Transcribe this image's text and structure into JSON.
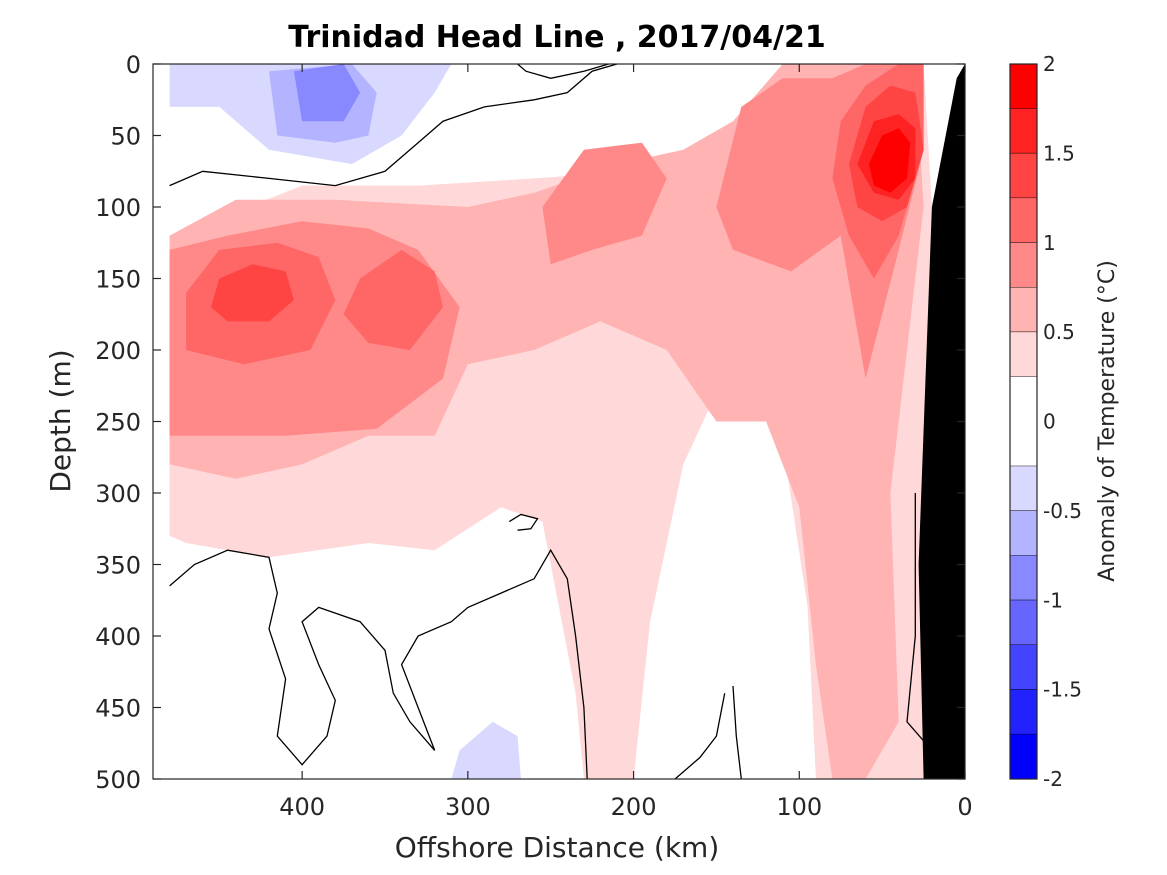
{
  "chart_data": {
    "type": "contour",
    "title": "Trinidad Head Line , 2017/04/21",
    "xlabel": "Offshore Distance (km)",
    "ylabel": "Depth (m)",
    "colorbar_label": "Anomaly of Temperature (°C)",
    "xlim": [
      490,
      0
    ],
    "ylim": [
      0,
      500
    ],
    "x_ticks": [
      400,
      300,
      200,
      100,
      0
    ],
    "y_ticks": [
      0,
      50,
      100,
      150,
      200,
      250,
      300,
      350,
      400,
      450,
      500
    ],
    "colorbar_range": [
      -2,
      2
    ],
    "colorbar_ticks": [
      2,
      1.5,
      1,
      0.5,
      0,
      -0.5,
      -1,
      -1.5,
      -2
    ],
    "levels": [
      {
        "range": [
          1.75,
          2.0
        ],
        "color": "#ff0000"
      },
      {
        "range": [
          1.5,
          1.75
        ],
        "color": "#ff2222"
      },
      {
        "range": [
          1.25,
          1.5
        ],
        "color": "#ff4444"
      },
      {
        "range": [
          1.0,
          1.25
        ],
        "color": "#ff6666"
      },
      {
        "range": [
          0.75,
          1.0
        ],
        "color": "#ff8888"
      },
      {
        "range": [
          0.5,
          0.75
        ],
        "color": "#ffb3b3"
      },
      {
        "range": [
          0.25,
          0.5
        ],
        "color": "#ffd9d9"
      },
      {
        "range": [
          -0.25,
          0.25
        ],
        "color": "#ffffff"
      },
      {
        "range": [
          -0.5,
          -0.25
        ],
        "color": "#d9d9ff"
      },
      {
        "range": [
          -0.75,
          -0.5
        ],
        "color": "#b3b3ff"
      },
      {
        "range": [
          -1.0,
          -0.75
        ],
        "color": "#8888ff"
      },
      {
        "range": [
          -1.25,
          -1.0
        ],
        "color": "#6666ff"
      },
      {
        "range": [
          -1.5,
          -1.25
        ],
        "color": "#4444ff"
      },
      {
        "range": [
          -1.75,
          -1.5
        ],
        "color": "#2222ff"
      },
      {
        "range": [
          -2.0,
          -1.75
        ],
        "color": "#0000ff"
      }
    ],
    "regions": [
      {
        "anomaly": 0.375,
        "points": [
          [
            480,
            330
          ],
          [
            480,
            200
          ],
          [
            455,
            110
          ],
          [
            400,
            85
          ],
          [
            330,
            85
          ],
          [
            260,
            80
          ],
          [
            200,
            75
          ],
          [
            140,
            65
          ],
          [
            90,
            40
          ],
          [
            60,
            0
          ],
          [
            25,
            0
          ],
          [
            20,
            100
          ],
          [
            18,
            500
          ],
          [
            90,
            500
          ],
          [
            95,
            380
          ],
          [
            108,
            280
          ],
          [
            120,
            180
          ],
          [
            150,
            230
          ],
          [
            170,
            280
          ],
          [
            190,
            390
          ],
          [
            200,
            500
          ],
          [
            230,
            500
          ],
          [
            235,
            440
          ],
          [
            255,
            320
          ],
          [
            280,
            310
          ],
          [
            320,
            340
          ],
          [
            360,
            335
          ],
          [
            420,
            345
          ],
          [
            470,
            335
          ]
        ]
      },
      {
        "anomaly": 0.625,
        "points": [
          [
            480,
            280
          ],
          [
            480,
            120
          ],
          [
            440,
            95
          ],
          [
            380,
            95
          ],
          [
            300,
            100
          ],
          [
            260,
            90
          ],
          [
            210,
            70
          ],
          [
            170,
            60
          ],
          [
            140,
            40
          ],
          [
            110,
            0
          ],
          [
            70,
            0
          ],
          [
            30,
            0
          ],
          [
            25,
            100
          ],
          [
            45,
            300
          ],
          [
            40,
            460
          ],
          [
            60,
            500
          ],
          [
            80,
            500
          ],
          [
            90,
            420
          ],
          [
            100,
            310
          ],
          [
            120,
            250
          ],
          [
            150,
            250
          ],
          [
            180,
            200
          ],
          [
            220,
            180
          ],
          [
            260,
            200
          ],
          [
            300,
            210
          ],
          [
            320,
            260
          ],
          [
            360,
            260
          ],
          [
            400,
            280
          ],
          [
            440,
            290
          ]
        ]
      },
      {
        "anomaly": 0.875,
        "points": [
          [
            480,
            260
          ],
          [
            480,
            130
          ],
          [
            445,
            120
          ],
          [
            400,
            110
          ],
          [
            360,
            115
          ],
          [
            330,
            130
          ],
          [
            305,
            170
          ],
          [
            315,
            220
          ],
          [
            355,
            255
          ],
          [
            410,
            260
          ],
          [
            460,
            260
          ]
        ]
      },
      {
        "anomaly": 0.875,
        "points": [
          [
            250,
            140
          ],
          [
            255,
            100
          ],
          [
            230,
            60
          ],
          [
            195,
            55
          ],
          [
            180,
            80
          ],
          [
            195,
            120
          ],
          [
            225,
            130
          ]
        ]
      },
      {
        "anomaly": 0.875,
        "points": [
          [
            150,
            100
          ],
          [
            135,
            30
          ],
          [
            110,
            10
          ],
          [
            80,
            10
          ],
          [
            60,
            0
          ],
          [
            25,
            0
          ],
          [
            25,
            60
          ],
          [
            40,
            130
          ],
          [
            60,
            220
          ],
          [
            75,
            120
          ],
          [
            105,
            145
          ],
          [
            140,
            130
          ]
        ]
      },
      {
        "anomaly": 1.125,
        "points": [
          [
            470,
            200
          ],
          [
            470,
            160
          ],
          [
            450,
            130
          ],
          [
            415,
            125
          ],
          [
            390,
            135
          ],
          [
            380,
            165
          ],
          [
            395,
            200
          ],
          [
            435,
            210
          ]
        ]
      },
      {
        "anomaly": 1.125,
        "points": [
          [
            375,
            175
          ],
          [
            365,
            150
          ],
          [
            340,
            130
          ],
          [
            320,
            145
          ],
          [
            315,
            170
          ],
          [
            335,
            200
          ],
          [
            360,
            195
          ]
        ]
      },
      {
        "anomaly": 1.125,
        "points": [
          [
            80,
            80
          ],
          [
            75,
            40
          ],
          [
            60,
            15
          ],
          [
            40,
            0
          ],
          [
            25,
            0
          ],
          [
            25,
            60
          ],
          [
            40,
            120
          ],
          [
            55,
            150
          ],
          [
            70,
            120
          ]
        ]
      },
      {
        "anomaly": 1.375,
        "points": [
          [
            455,
            170
          ],
          [
            450,
            150
          ],
          [
            430,
            140
          ],
          [
            410,
            145
          ],
          [
            405,
            165
          ],
          [
            420,
            180
          ],
          [
            445,
            180
          ]
        ]
      },
      {
        "anomaly": 1.375,
        "points": [
          [
            70,
            70
          ],
          [
            60,
            30
          ],
          [
            45,
            15
          ],
          [
            30,
            20
          ],
          [
            25,
            60
          ],
          [
            35,
            100
          ],
          [
            50,
            110
          ],
          [
            65,
            100
          ]
        ]
      },
      {
        "anomaly": 1.625,
        "points": [
          [
            65,
            70
          ],
          [
            55,
            40
          ],
          [
            40,
            35
          ],
          [
            30,
            45
          ],
          [
            30,
            80
          ],
          [
            40,
            95
          ],
          [
            55,
            90
          ]
        ]
      },
      {
        "anomaly": 1.875,
        "points": [
          [
            58,
            70
          ],
          [
            50,
            50
          ],
          [
            40,
            45
          ],
          [
            33,
            55
          ],
          [
            35,
            80
          ],
          [
            45,
            90
          ],
          [
            55,
            85
          ]
        ]
      },
      {
        "anomaly": -0.375,
        "points": [
          [
            480,
            0
          ],
          [
            480,
            30
          ],
          [
            450,
            30
          ],
          [
            420,
            60
          ],
          [
            370,
            70
          ],
          [
            340,
            50
          ],
          [
            320,
            20
          ],
          [
            310,
            0
          ]
        ]
      },
      {
        "anomaly": -0.625,
        "points": [
          [
            420,
            5
          ],
          [
            415,
            50
          ],
          [
            380,
            55
          ],
          [
            360,
            50
          ],
          [
            355,
            20
          ],
          [
            370,
            0
          ]
        ]
      },
      {
        "anomaly": -0.875,
        "points": [
          [
            405,
            5
          ],
          [
            400,
            40
          ],
          [
            375,
            40
          ],
          [
            365,
            20
          ],
          [
            375,
            0
          ]
        ]
      },
      {
        "anomaly": -0.375,
        "points": [
          [
            310,
            500
          ],
          [
            305,
            480
          ],
          [
            285,
            460
          ],
          [
            270,
            470
          ],
          [
            268,
            500
          ]
        ]
      }
    ],
    "zero_contours": [
      [
        [
          480,
          85
        ],
        [
          460,
          75
        ],
        [
          420,
          80
        ],
        [
          380,
          85
        ],
        [
          350,
          75
        ],
        [
          330,
          55
        ],
        [
          315,
          40
        ],
        [
          290,
          30
        ],
        [
          260,
          25
        ],
        [
          240,
          20
        ],
        [
          225,
          5
        ],
        [
          210,
          0
        ]
      ],
      [
        [
          270,
          0
        ],
        [
          265,
          5
        ],
        [
          250,
          10
        ],
        [
          230,
          5
        ],
        [
          215,
          0
        ]
      ],
      [
        [
          480,
          365
        ],
        [
          465,
          350
        ],
        [
          445,
          340
        ],
        [
          420,
          345
        ],
        [
          415,
          370
        ],
        [
          420,
          395
        ],
        [
          410,
          430
        ],
        [
          415,
          470
        ],
        [
          400,
          490
        ],
        [
          385,
          470
        ],
        [
          380,
          445
        ],
        [
          390,
          420
        ],
        [
          400,
          390
        ],
        [
          390,
          380
        ],
        [
          365,
          390
        ],
        [
          350,
          410
        ],
        [
          345,
          440
        ],
        [
          335,
          460
        ],
        [
          320,
          480
        ],
        [
          330,
          450
        ],
        [
          340,
          420
        ],
        [
          330,
          400
        ],
        [
          310,
          390
        ],
        [
          300,
          380
        ],
        [
          280,
          370
        ],
        [
          260,
          360
        ],
        [
          250,
          340
        ],
        [
          240,
          360
        ],
        [
          235,
          400
        ],
        [
          230,
          450
        ],
        [
          228,
          500
        ]
      ],
      [
        [
          275,
          320
        ],
        [
          268,
          315
        ],
        [
          258,
          318
        ],
        [
          262,
          325
        ],
        [
          270,
          326
        ]
      ],
      [
        [
          140,
          435
        ],
        [
          138,
          470
        ],
        [
          135,
          500
        ]
      ],
      [
        [
          145,
          440
        ],
        [
          150,
          470
        ],
        [
          160,
          485
        ],
        [
          170,
          495
        ],
        [
          175,
          500
        ]
      ],
      [
        [
          30,
          300
        ],
        [
          30,
          400
        ],
        [
          35,
          460
        ],
        [
          20,
          480
        ]
      ]
    ],
    "land": [
      [
        0,
        0
      ],
      [
        0,
        500
      ],
      [
        25,
        500
      ],
      [
        28,
        350
      ],
      [
        20,
        100
      ],
      [
        5,
        10
      ]
    ]
  }
}
